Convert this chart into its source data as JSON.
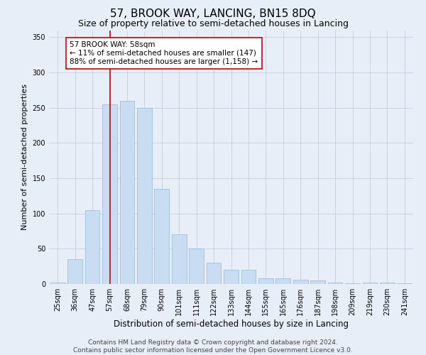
{
  "title": "57, BROOK WAY, LANCING, BN15 8DQ",
  "subtitle": "Size of property relative to semi-detached houses in Lancing",
  "xlabel": "Distribution of semi-detached houses by size in Lancing",
  "ylabel": "Number of semi-detached properties",
  "categories": [
    "25sqm",
    "36sqm",
    "47sqm",
    "57sqm",
    "68sqm",
    "79sqm",
    "90sqm",
    "101sqm",
    "111sqm",
    "122sqm",
    "133sqm",
    "144sqm",
    "155sqm",
    "165sqm",
    "176sqm",
    "187sqm",
    "198sqm",
    "209sqm",
    "219sqm",
    "230sqm",
    "241sqm"
  ],
  "values": [
    2,
    35,
    105,
    255,
    260,
    250,
    135,
    70,
    50,
    30,
    20,
    20,
    8,
    8,
    6,
    5,
    2,
    1,
    2,
    2,
    1
  ],
  "bar_color": "#c9ddf2",
  "bar_edgecolor": "#a0bede",
  "highlight_index": 3,
  "highlight_line_color": "#cc0000",
  "ylim": [
    0,
    360
  ],
  "yticks": [
    0,
    50,
    100,
    150,
    200,
    250,
    300,
    350
  ],
  "annotation_text": "57 BROOK WAY: 58sqm\n← 11% of semi-detached houses are smaller (147)\n88% of semi-detached houses are larger (1,158) →",
  "annotation_box_facecolor": "#ffffff",
  "annotation_box_edgecolor": "#cc0000",
  "background_color": "#e8eef8",
  "plot_background_color": "#e8eef8",
  "footer_line1": "Contains HM Land Registry data © Crown copyright and database right 2024.",
  "footer_line2": "Contains public sector information licensed under the Open Government Licence v3.0.",
  "title_fontsize": 11,
  "subtitle_fontsize": 9,
  "xlabel_fontsize": 8.5,
  "ylabel_fontsize": 8,
  "tick_fontsize": 7,
  "annotation_fontsize": 7.5,
  "footer_fontsize": 6.5,
  "grid_color": "#c0c8d8"
}
